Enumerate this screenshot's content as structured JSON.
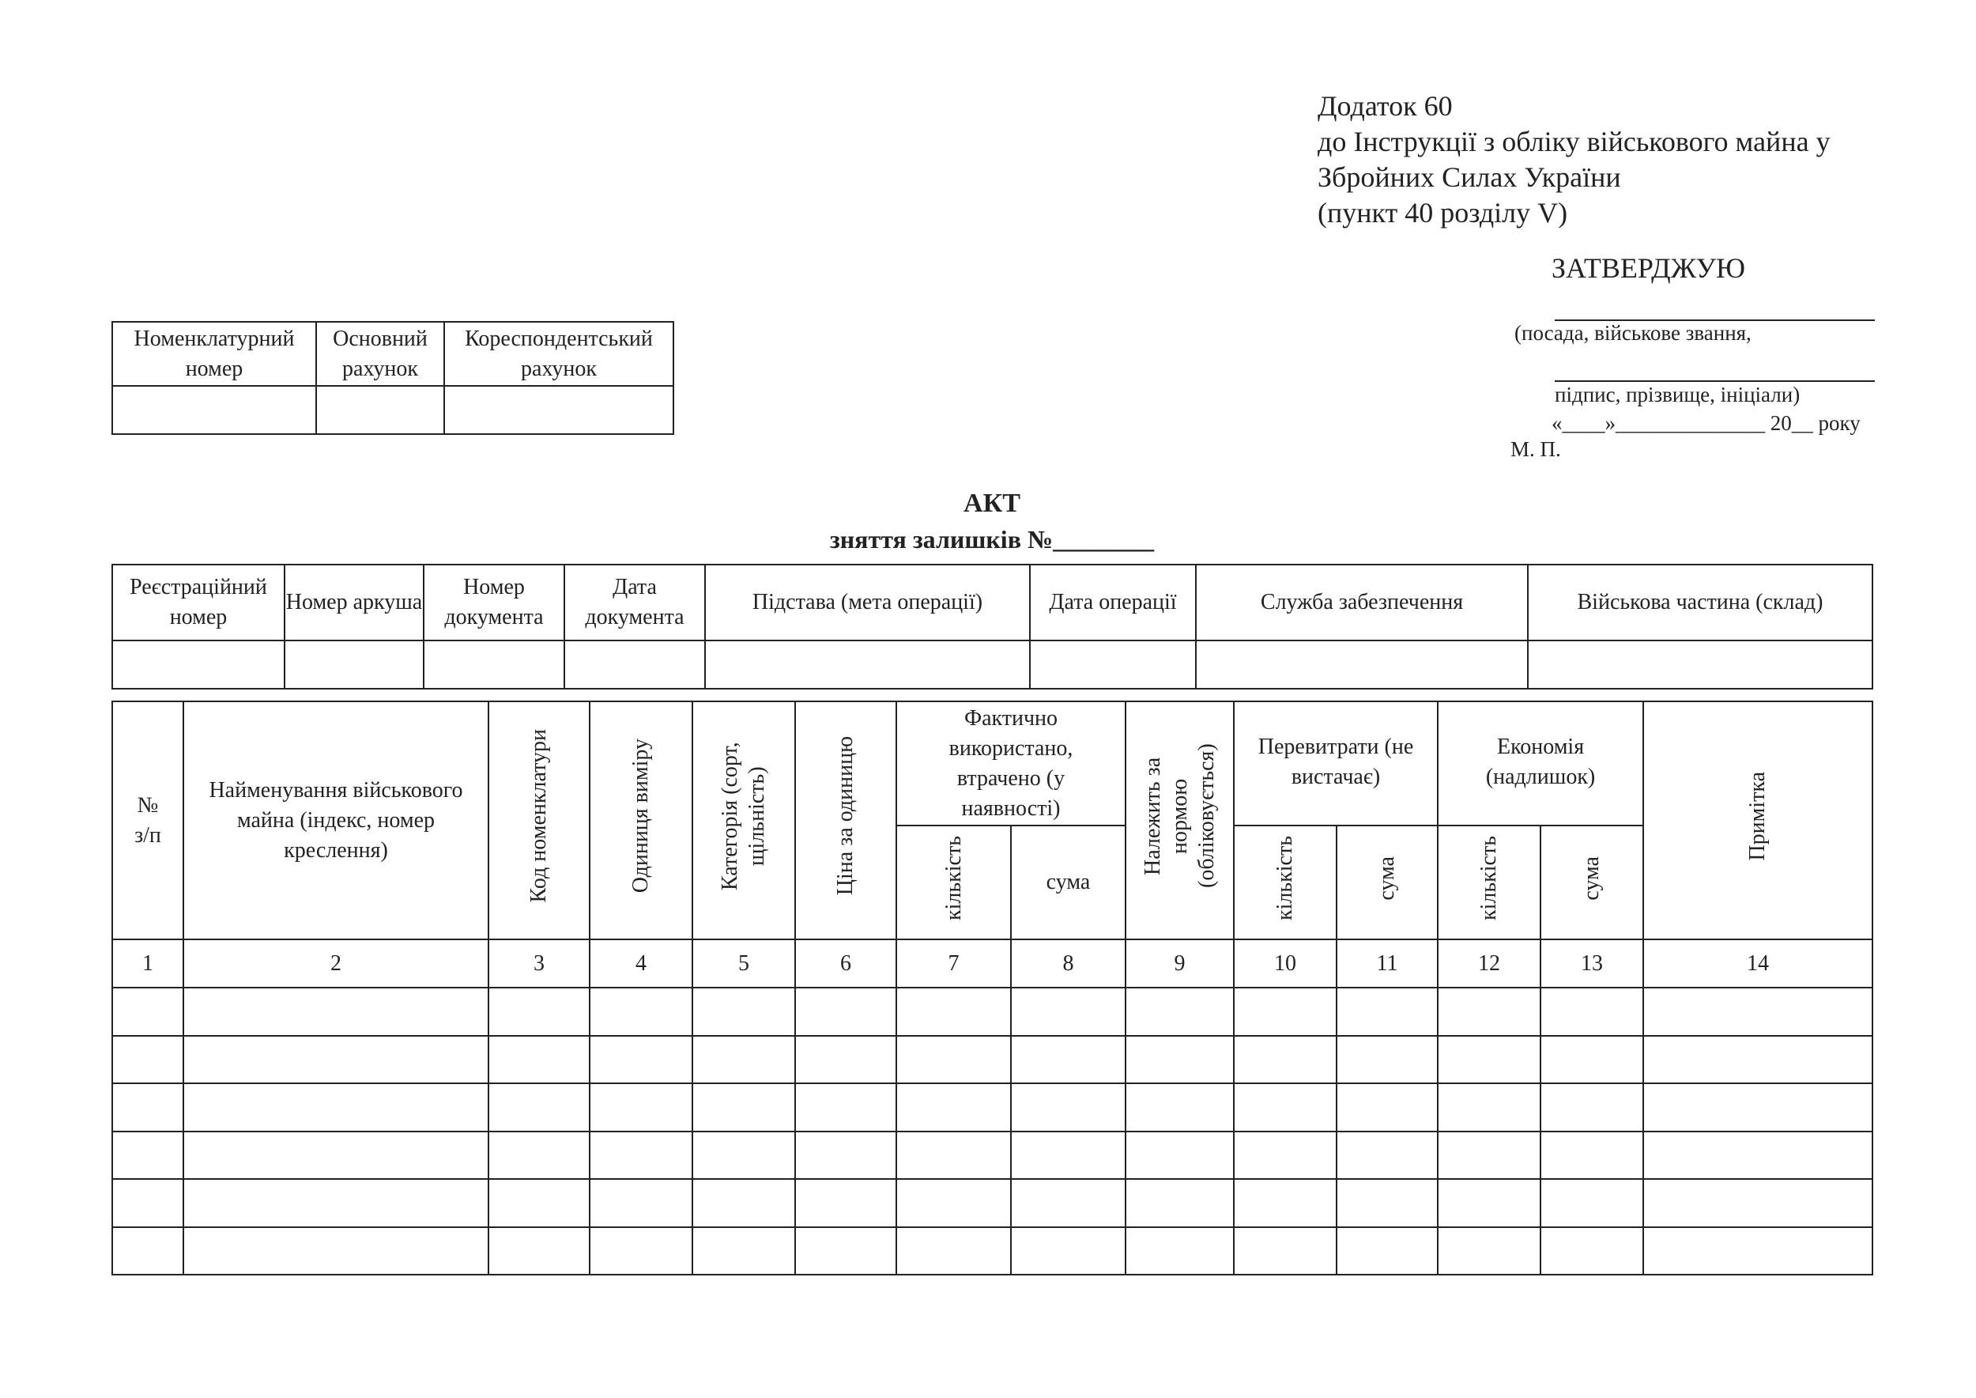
{
  "appendix": {
    "lines": [
      "Додаток 60",
      "до Інструкції з обліку військового майна у",
      "Збройних Силах України",
      "(пункт 40 розділу V)"
    ]
  },
  "approval": {
    "heading": "ЗАТВЕРДЖУЮ",
    "position_hint": "(посада, військове звання,",
    "signature_hint": "підпис, прізвище, ініціали)",
    "date_line": "«____»______________ 20__ року",
    "seal": "М. П."
  },
  "accounts_table": {
    "headers": [
      "Номенклатурний номер",
      "Основний рахунок",
      "Кореспондентський рахунок"
    ]
  },
  "document": {
    "title": "АКТ",
    "subtitle": "зняття залишків №________"
  },
  "registration_table": {
    "headers": [
      "Реєстраційний номер",
      "Номер аркуша",
      "Номер документа",
      "Дата документа",
      "Підстава (мета операції)",
      "Дата операції",
      "Служба забезпечення",
      "Військова частина (склад)"
    ]
  },
  "main_table": {
    "h_no": "№ з/п",
    "h_name": "Найменування військового майна (індекс, номер креслення)",
    "h_code": "Код номенклатури",
    "h_unit": "Одиниця виміру",
    "h_category": "Категорія (сорт, щільність)",
    "h_price": "Ціна за одиницю",
    "h_actual": "Фактично використано, втрачено (у наявності)",
    "h_norm": "Належить за нормою (обліковується)",
    "h_overspend": "Перевитрати (не вистачає)",
    "h_economy": "Економія (надлишок)",
    "h_note": "Примітка",
    "h_qty": "кількість",
    "h_sum": "сума",
    "column_numbers": [
      "1",
      "2",
      "3",
      "4",
      "5",
      "6",
      "7",
      "8",
      "9",
      "10",
      "11",
      "12",
      "13",
      "14"
    ],
    "empty_rows": 6
  }
}
